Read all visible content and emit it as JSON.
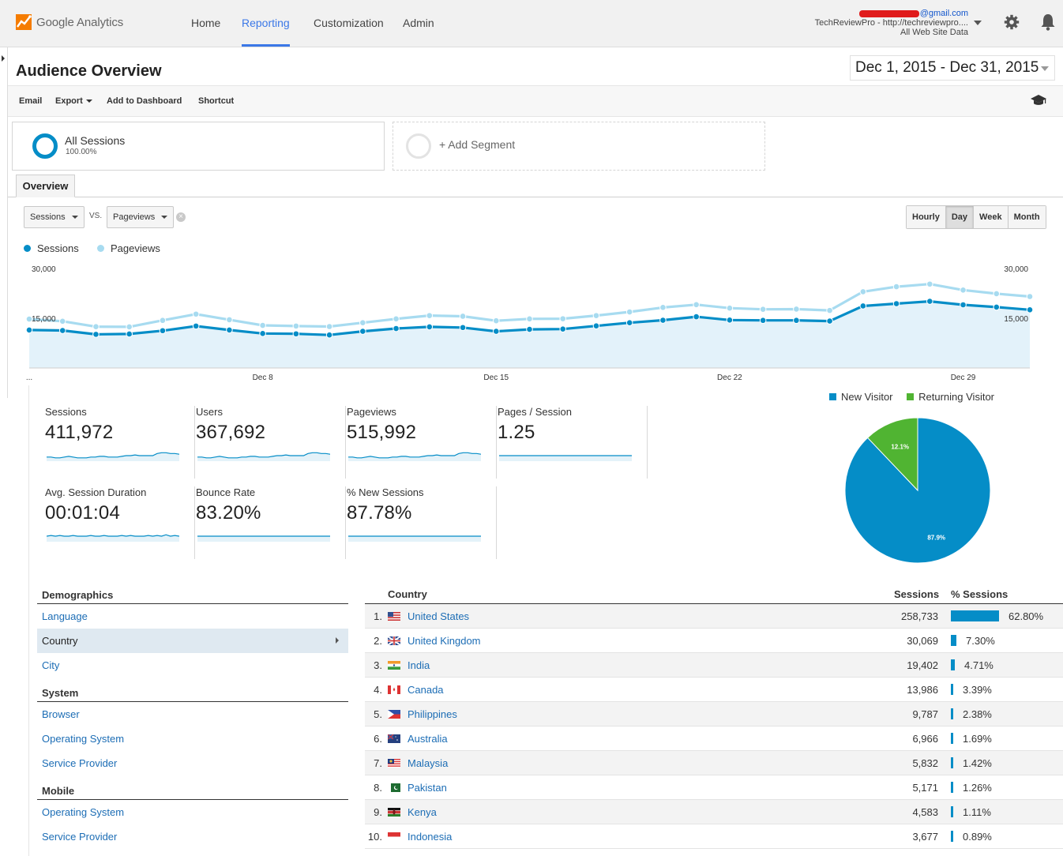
{
  "app": {
    "name": "Google Analytics"
  },
  "nav": {
    "home": "Home",
    "reporting": "Reporting",
    "customization": "Customization",
    "admin": "Admin"
  },
  "account": {
    "email_suffix": "@gmail.com",
    "property": "TechReviewPro - http://techreviewpro....",
    "view": "All Web Site Data"
  },
  "page": {
    "title": "Audience Overview",
    "date_range": "Dec 1, 2015 - Dec 31, 2015"
  },
  "toolbar": {
    "email": "Email",
    "export": "Export",
    "add_to_dashboard": "Add to Dashboard",
    "shortcut": "Shortcut"
  },
  "segments": {
    "all_sessions": "All Sessions",
    "all_sessions_pct": "100.00%",
    "add_segment": "+ Add Segment"
  },
  "tabs": {
    "overview": "Overview"
  },
  "chart_controls": {
    "metric1": "Sessions",
    "vs": "VS.",
    "metric2": "Pageviews",
    "remove": "×",
    "hourly": "Hourly",
    "day": "Day",
    "week": "Week",
    "month": "Month"
  },
  "icons": {
    "gear": "gear-icon",
    "bell": "bell-icon",
    "graduation_cap": "graduation-cap-icon",
    "logo": "analytics-logo-icon"
  },
  "colors": {
    "sessions": "#058dc7",
    "pageviews": "#a7dbf0",
    "accent": "#3b78e7",
    "link": "#1c6db5",
    "new_visitor": "#058dc7",
    "returning_visitor": "#50b432"
  },
  "chart_data": [
    {
      "type": "line",
      "x": [
        "Dec 1",
        "Dec 2",
        "Dec 3",
        "Dec 4",
        "Dec 5",
        "Dec 6",
        "Dec 7",
        "Dec 8",
        "Dec 9",
        "Dec 10",
        "Dec 11",
        "Dec 12",
        "Dec 13",
        "Dec 14",
        "Dec 15",
        "Dec 16",
        "Dec 17",
        "Dec 18",
        "Dec 19",
        "Dec 20",
        "Dec 21",
        "Dec 22",
        "Dec 23",
        "Dec 24",
        "Dec 25",
        "Dec 26",
        "Dec 27",
        "Dec 28",
        "Dec 29",
        "Dec 30",
        "Dec 31"
      ],
      "x_tick_labels": [
        "...",
        "Dec 8",
        "Dec 15",
        "Dec 22",
        "Dec 29"
      ],
      "x_tick_index": [
        0,
        7,
        14,
        21,
        28
      ],
      "y_tick_labels": {
        "left": [
          "30,000",
          "15,000"
        ],
        "right": [
          "30,000",
          "15,000"
        ]
      },
      "ylim": [
        0,
        30000
      ],
      "series": [
        {
          "name": "Sessions",
          "values": [
            11450,
            11300,
            10150,
            10250,
            11250,
            12650,
            11450,
            10400,
            10300,
            9950,
            11050,
            11900,
            12400,
            12200,
            11050,
            11650,
            11750,
            12700,
            13650,
            14400,
            15450,
            14450,
            14350,
            14350,
            14150,
            18700,
            19400,
            20100,
            19050,
            18350,
            17550
          ]
        },
        {
          "name": "Pageviews",
          "values": [
            14750,
            14100,
            12450,
            12400,
            14350,
            16250,
            14550,
            12850,
            12650,
            12500,
            13650,
            14800,
            15800,
            15600,
            14250,
            14800,
            14850,
            15800,
            16900,
            18250,
            19100,
            18050,
            17700,
            17750,
            17350,
            23000,
            24500,
            25300,
            23500,
            22400,
            21550
          ]
        }
      ],
      "grid": false,
      "legend_position": "top-left"
    },
    {
      "type": "pie",
      "categories": [
        "New Visitor",
        "Returning Visitor"
      ],
      "values": [
        87.9,
        12.1
      ],
      "labels": [
        "87.9%",
        "12.1%"
      ],
      "legend_position": "top"
    }
  ],
  "metrics": [
    {
      "label": "Sessions",
      "value": "411,972",
      "spark": [
        10,
        10,
        9,
        9,
        10,
        11,
        10,
        9,
        9,
        9,
        10,
        10,
        11,
        11,
        10,
        10,
        10,
        11,
        12,
        12,
        13,
        12,
        12,
        12,
        12,
        15,
        16,
        16,
        15,
        15,
        14
      ]
    },
    {
      "label": "Users",
      "value": "367,692",
      "spark": [
        10,
        10,
        9,
        9,
        10,
        11,
        10,
        9,
        9,
        9,
        10,
        10,
        11,
        11,
        10,
        10,
        10,
        11,
        12,
        12,
        13,
        12,
        12,
        12,
        12,
        15,
        16,
        16,
        15,
        15,
        14
      ]
    },
    {
      "label": "Pageviews",
      "value": "515,992",
      "spark": [
        10,
        10,
        9,
        9,
        10,
        11,
        10,
        9,
        9,
        9,
        10,
        10,
        11,
        11,
        10,
        10,
        10,
        11,
        12,
        12,
        13,
        12,
        12,
        12,
        12,
        15,
        16,
        16,
        15,
        15,
        14
      ]
    },
    {
      "label": "Pages / Session",
      "value": "1.25",
      "spark": [
        12,
        12,
        12,
        12,
        12,
        12,
        12,
        12,
        12,
        12,
        12,
        12,
        12,
        12,
        12,
        12,
        12,
        12,
        12,
        12,
        12,
        12,
        12,
        12,
        12,
        12,
        12,
        12,
        12,
        12,
        12
      ]
    },
    {
      "label": "Avg. Session Duration",
      "value": "00:01:04",
      "spark": [
        12,
        13,
        12,
        13,
        12,
        12,
        13,
        12,
        12,
        12,
        13,
        12,
        12,
        13,
        12,
        12,
        12,
        13,
        12,
        13,
        12,
        12,
        12,
        13,
        12,
        13,
        12,
        14,
        12,
        13,
        12
      ]
    },
    {
      "label": "Bounce Rate",
      "value": "83.20%",
      "spark": [
        12,
        12,
        12,
        12,
        12,
        12,
        12,
        12,
        12,
        12,
        12,
        12,
        12,
        12,
        12,
        12,
        12,
        12,
        12,
        12,
        12,
        12,
        12,
        12,
        12,
        12,
        12,
        12,
        12,
        12,
        12
      ]
    },
    {
      "label": "% New Sessions",
      "value": "87.78%",
      "spark": [
        12,
        12,
        12,
        12,
        12,
        12,
        12,
        12,
        12,
        12,
        12,
        12,
        12,
        12,
        12,
        12,
        12,
        12,
        12,
        12,
        12,
        12,
        12,
        12,
        12,
        12,
        12,
        12,
        12,
        12,
        12
      ]
    }
  ],
  "pie_legend": {
    "new": "New Visitor",
    "returning": "Returning Visitor"
  },
  "demographics": {
    "demographics_title": "Demographics",
    "demographics_items": [
      "Language",
      "Country",
      "City"
    ],
    "system_title": "System",
    "system_items": [
      "Browser",
      "Operating System",
      "Service Provider"
    ],
    "mobile_title": "Mobile",
    "mobile_items": [
      "Operating System",
      "Service Provider"
    ]
  },
  "country_table": {
    "headers": {
      "country": "Country",
      "sessions": "Sessions",
      "pct": "% Sessions"
    },
    "rows": [
      {
        "rank": "1.",
        "country": "United States",
        "sessions": "258,733",
        "pct": "62.80%",
        "share": 0.628,
        "flag": "us"
      },
      {
        "rank": "2.",
        "country": "United Kingdom",
        "sessions": "30,069",
        "pct": "7.30%",
        "share": 0.073,
        "flag": "gb"
      },
      {
        "rank": "3.",
        "country": "India",
        "sessions": "19,402",
        "pct": "4.71%",
        "share": 0.0471,
        "flag": "in"
      },
      {
        "rank": "4.",
        "country": "Canada",
        "sessions": "13,986",
        "pct": "3.39%",
        "share": 0.0339,
        "flag": "ca"
      },
      {
        "rank": "5.",
        "country": "Philippines",
        "sessions": "9,787",
        "pct": "2.38%",
        "share": 0.0238,
        "flag": "ph"
      },
      {
        "rank": "6.",
        "country": "Australia",
        "sessions": "6,966",
        "pct": "1.69%",
        "share": 0.0169,
        "flag": "au"
      },
      {
        "rank": "7.",
        "country": "Malaysia",
        "sessions": "5,832",
        "pct": "1.42%",
        "share": 0.0142,
        "flag": "my"
      },
      {
        "rank": "8.",
        "country": "Pakistan",
        "sessions": "5,171",
        "pct": "1.26%",
        "share": 0.0126,
        "flag": "pk"
      },
      {
        "rank": "9.",
        "country": "Kenya",
        "sessions": "4,583",
        "pct": "1.11%",
        "share": 0.0111,
        "flag": "ke"
      },
      {
        "rank": "10.",
        "country": "Indonesia",
        "sessions": "3,677",
        "pct": "0.89%",
        "share": 0.0089,
        "flag": "id"
      }
    ]
  }
}
